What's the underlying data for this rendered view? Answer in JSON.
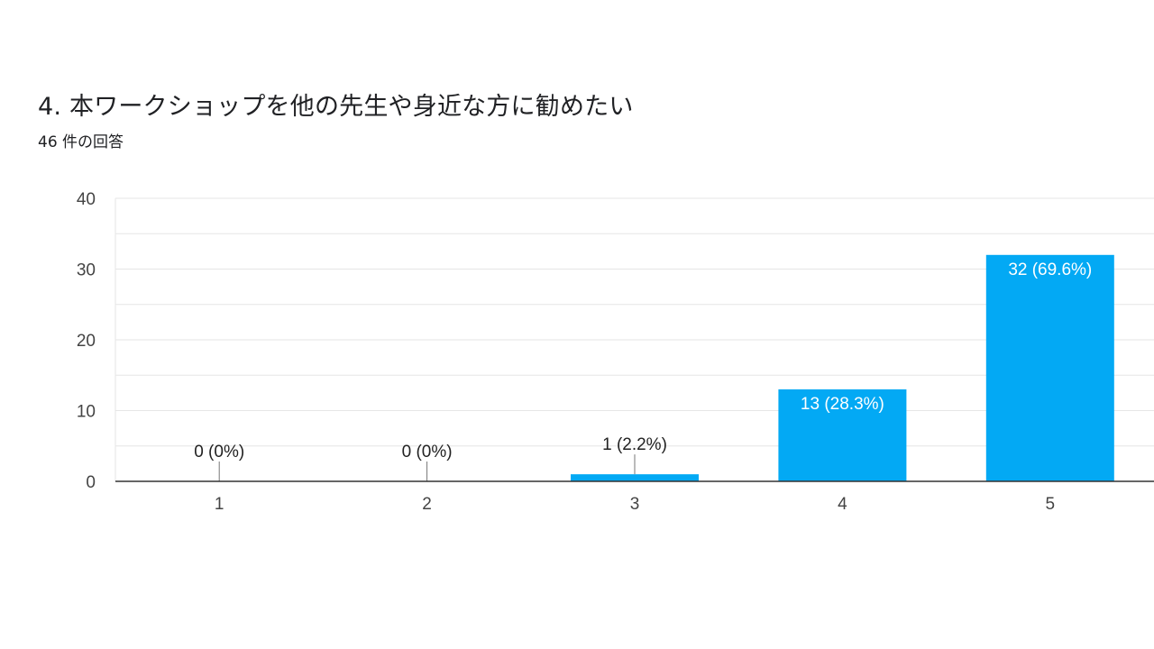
{
  "question": {
    "title": "4. 本ワークショップを他の先生や身近な方に勧めたい",
    "response_count": "46 件の回答"
  },
  "colors": {
    "bar": "#03A9F4",
    "grid": "#E6E6E6",
    "axis": "#333333",
    "inside_label": "#FFFFFF",
    "outside_label": "#222222",
    "leader": "#777777"
  },
  "chart_data": {
    "type": "bar",
    "title": "",
    "xlabel": "",
    "ylabel": "",
    "categories": [
      "1",
      "2",
      "3",
      "4",
      "5"
    ],
    "values": [
      0,
      0,
      1,
      13,
      32
    ],
    "data_labels": [
      "0 (0%)",
      "0 (0%)",
      "1 (2.2%)",
      "13 (28.3%)",
      "32 (69.6%)"
    ],
    "ylim": [
      0,
      40
    ],
    "yticks": [
      0,
      10,
      20,
      30,
      40
    ],
    "grid": true
  }
}
